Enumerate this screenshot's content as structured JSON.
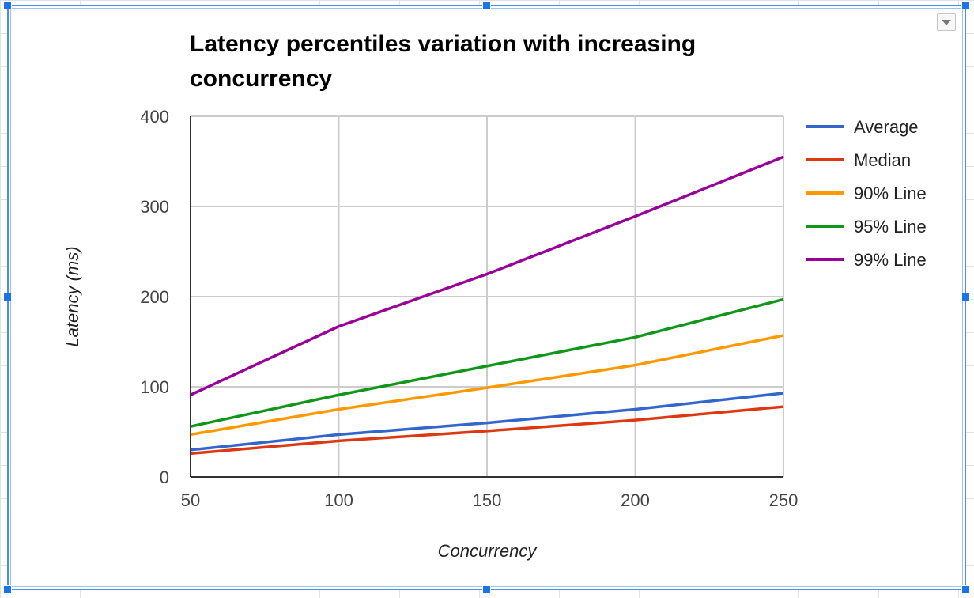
{
  "chart_data": {
    "type": "line",
    "title": "Latency percentiles variation with increasing concurrency",
    "xlabel": "Concurrency",
    "ylabel": "Latency (ms)",
    "x": [
      50,
      100,
      150,
      200,
      250
    ],
    "x_ticks": [
      "50",
      "100",
      "150",
      "200",
      "250"
    ],
    "y_ticks": [
      "0",
      "100",
      "200",
      "300",
      "400"
    ],
    "xlim": [
      50,
      250
    ],
    "ylim": [
      0,
      400
    ],
    "grid": true,
    "legend_position": "right",
    "series": [
      {
        "name": "Average",
        "color": "#3366cc",
        "values": [
          30,
          47,
          60,
          75,
          93
        ]
      },
      {
        "name": "Median",
        "color": "#dc3912",
        "values": [
          26,
          40,
          51,
          63,
          78
        ]
      },
      {
        "name": "90% Line",
        "color": "#ff9900",
        "values": [
          47,
          75,
          99,
          124,
          157
        ]
      },
      {
        "name": "95% Line",
        "color": "#109618",
        "values": [
          56,
          91,
          123,
          155,
          197
        ]
      },
      {
        "name": "99% Line",
        "color": "#990099",
        "values": [
          91,
          167,
          225,
          289,
          355
        ]
      }
    ]
  }
}
